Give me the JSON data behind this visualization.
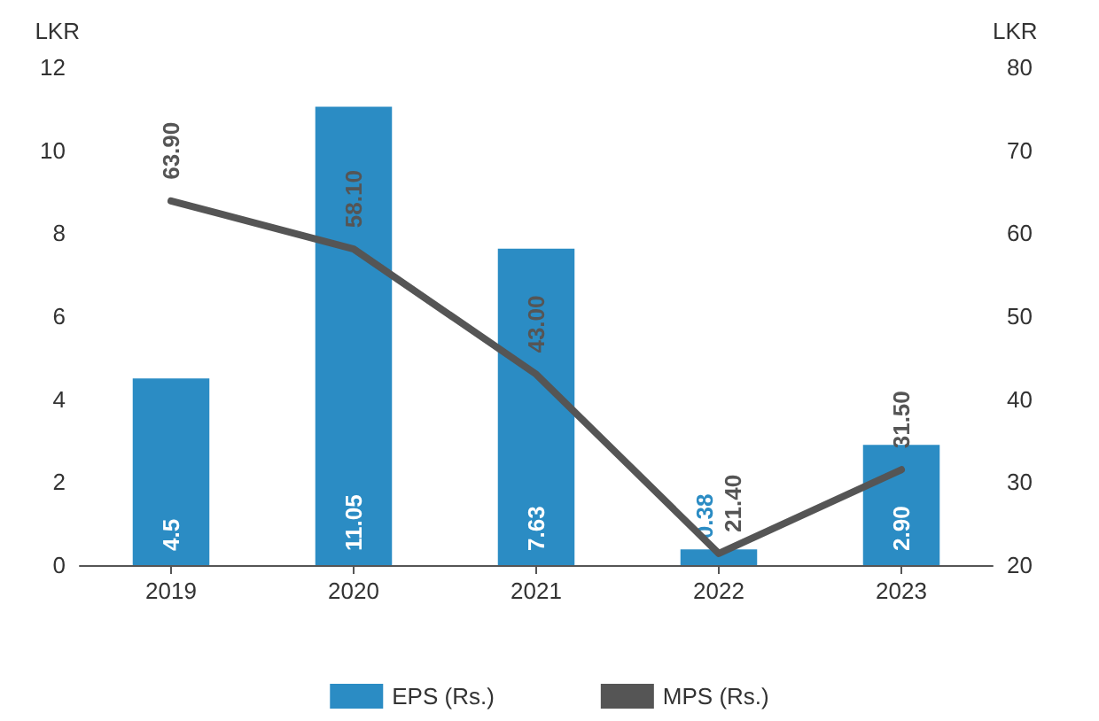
{
  "chart_data": {
    "type": "bar",
    "categories": [
      "2019",
      "2020",
      "2021",
      "2022",
      "2023"
    ],
    "ylabel": "LKR",
    "y2label": "LKR",
    "ylim": [
      0,
      12
    ],
    "yticks": [
      0,
      2,
      4,
      6,
      8,
      10,
      12
    ],
    "y2lim": [
      20,
      80
    ],
    "y2ticks": [
      20,
      30,
      40,
      50,
      60,
      70,
      80
    ],
    "grid": false,
    "legend": "bottom",
    "series": [
      {
        "name": "EPS (Rs.)",
        "color": "#2b8cc4",
        "values": [
          4.5,
          11.05,
          7.63,
          0.38,
          2.9
        ],
        "value_labels": [
          "4.5",
          "11.05",
          "7.63",
          "0.38",
          "2.90"
        ]
      },
      {
        "name": "MPS (Rs.)",
        "type": "line",
        "axis": "y2",
        "color": "#555555",
        "marker": "none",
        "line_style": "solid",
        "values": [
          63.9,
          58.1,
          43.0,
          21.4,
          31.5
        ],
        "value_labels": [
          "63.90",
          "58.10",
          "43.00",
          "21.40",
          "31.50"
        ]
      }
    ]
  }
}
